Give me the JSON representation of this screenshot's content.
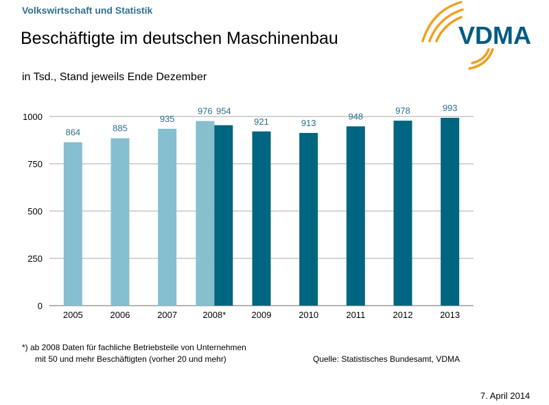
{
  "header": {
    "section": "Volkswirtschaft und Statistik",
    "title": "Beschäftigte im deutschen Maschinenbau",
    "logo_text": "VDMA"
  },
  "footnote": {
    "line1": "*)   ab 2008 Daten für fachliche Betriebsteile von Unternehmen",
    "line2": "mit 50 und mehr Beschäftigten (vorher 20 und mehr)"
  },
  "source": "Quelle: Statistisches Bundesamt, VDMA",
  "date": "7. April 2014",
  "colors": {
    "light": "#86BFCE",
    "dark": "#006580",
    "label": "#2C6E8A",
    "brand_orange": "#F0A01E",
    "brand_blue": "#005B84"
  },
  "chart_data": {
    "type": "bar",
    "subtitle": "in Tsd., Stand jeweils Ende Dezember",
    "categories": [
      "2005",
      "2006",
      "2007",
      "2008*",
      "2009",
      "2010",
      "2011",
      "2012",
      "2013"
    ],
    "series": [
      {
        "values": [
          864,
          885,
          935,
          976,
          null,
          null,
          null,
          null,
          null
        ],
        "color": "#86BFCE"
      },
      {
        "values": [
          null,
          null,
          null,
          954,
          921,
          913,
          948,
          978,
          993
        ],
        "color": "#006580"
      }
    ],
    "ylim": [
      0,
      1000
    ],
    "yticks": [
      "0",
      "250",
      "500",
      "750",
      "1000"
    ],
    "grid": true
  }
}
